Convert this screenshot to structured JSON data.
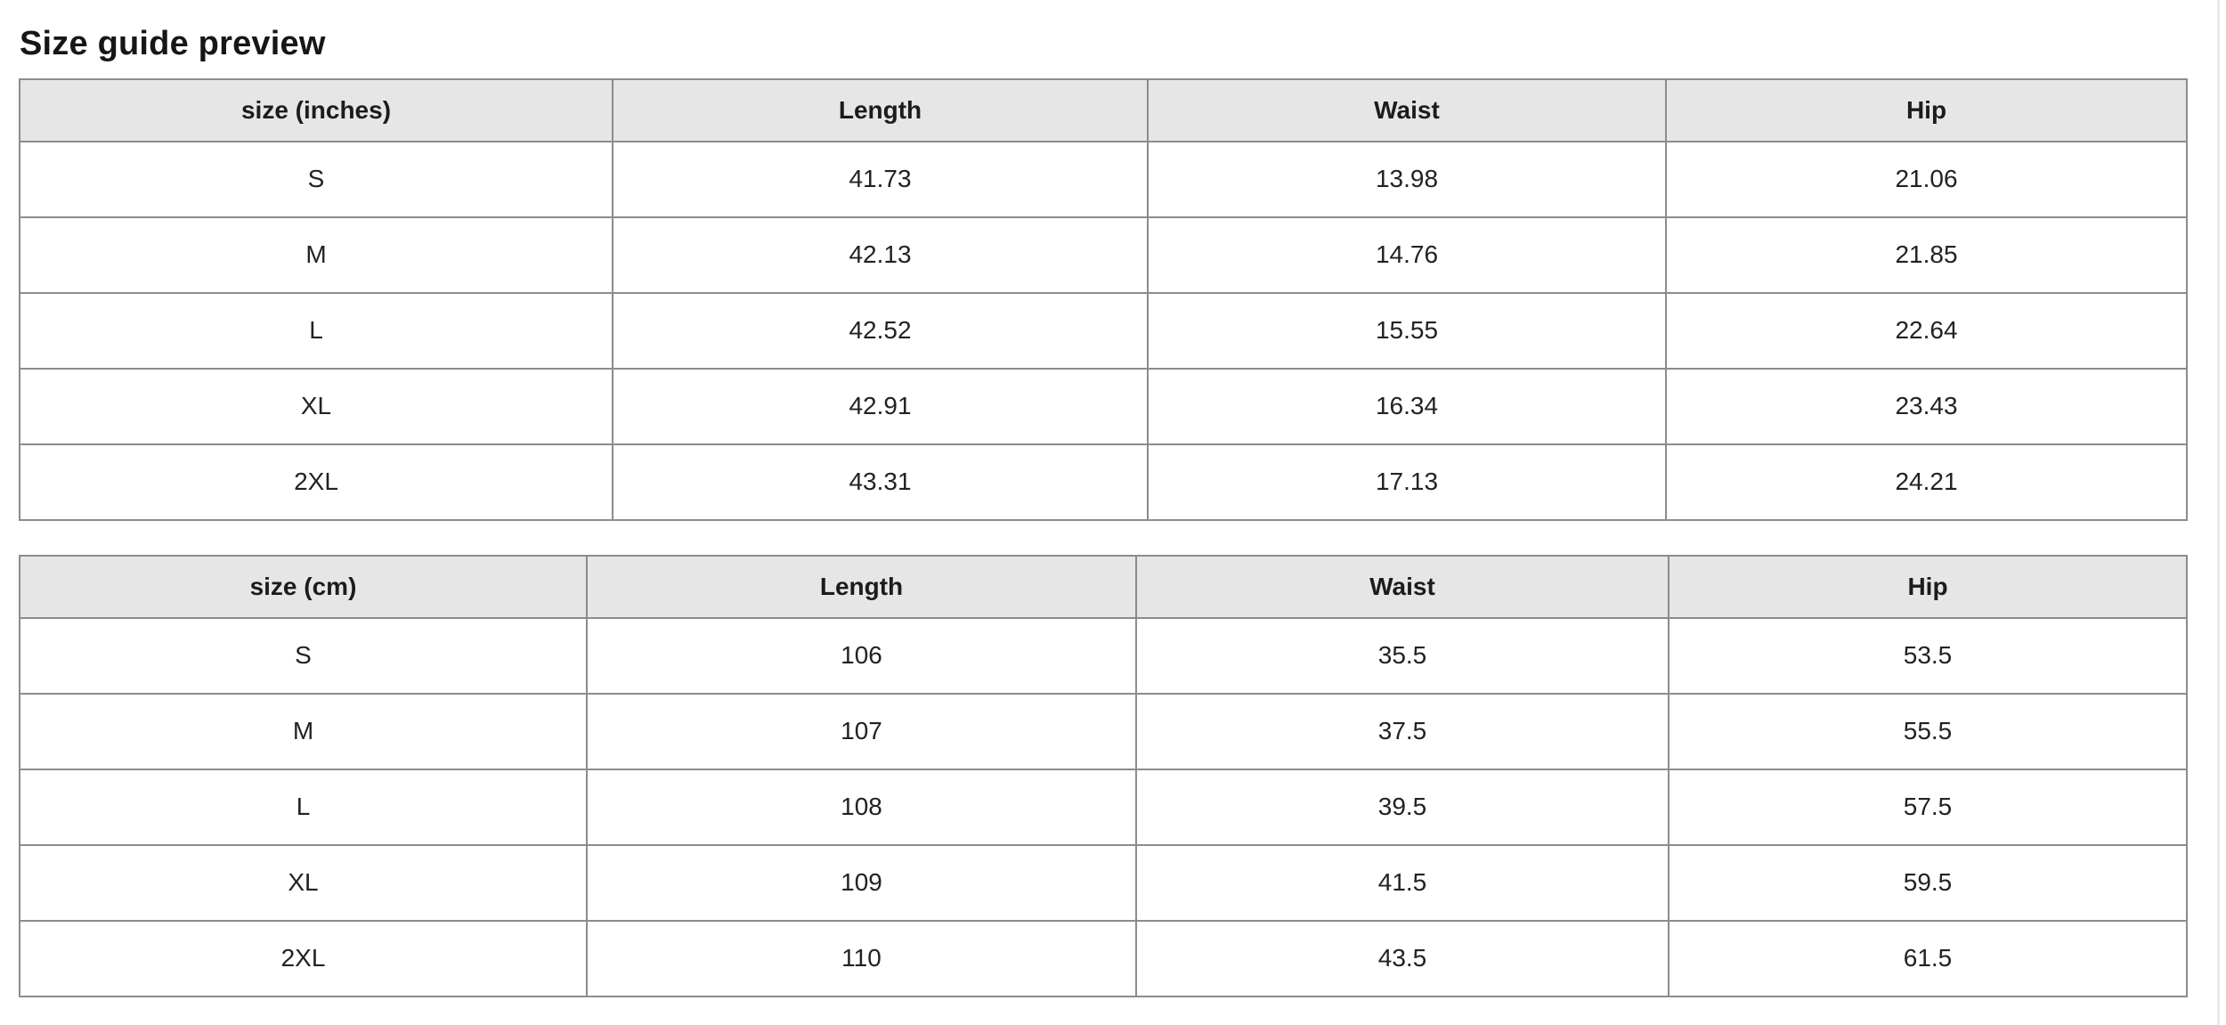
{
  "page": {
    "title": "Size guide preview"
  },
  "colors": {
    "header_background": "#e6e6e6",
    "table_border": "#8c8c8c",
    "text": "#1c1c1c",
    "scrollbar_track": "#e9e9ef"
  },
  "tables": [
    {
      "name": "inches",
      "headers": [
        "size (inches)",
        "Length",
        "Waist",
        "Hip"
      ],
      "rows": [
        [
          "S",
          "41.73",
          "13.98",
          "21.06"
        ],
        [
          "M",
          "42.13",
          "14.76",
          "21.85"
        ],
        [
          "L",
          "42.52",
          "15.55",
          "22.64"
        ],
        [
          "XL",
          "42.91",
          "16.34",
          "23.43"
        ],
        [
          "2XL",
          "43.31",
          "17.13",
          "24.21"
        ]
      ]
    },
    {
      "name": "cm",
      "headers": [
        "size (cm)",
        "Length",
        "Waist",
        "Hip"
      ],
      "rows": [
        [
          "S",
          "106",
          "35.5",
          "53.5"
        ],
        [
          "M",
          "107",
          "37.5",
          "55.5"
        ],
        [
          "L",
          "108",
          "39.5",
          "57.5"
        ],
        [
          "XL",
          "109",
          "41.5",
          "59.5"
        ],
        [
          "2XL",
          "110",
          "43.5",
          "61.5"
        ]
      ]
    }
  ]
}
